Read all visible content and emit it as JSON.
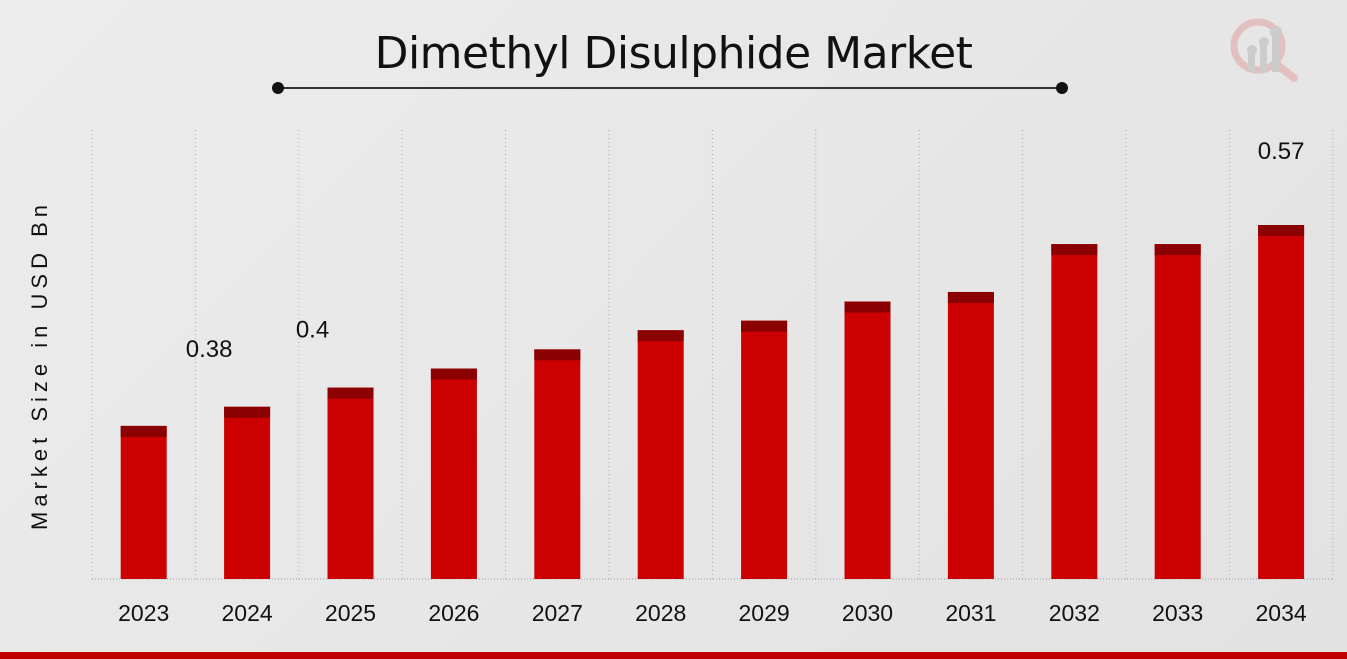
{
  "chart_data": {
    "type": "bar",
    "title": "Dimethyl Disulphide Market",
    "xlabel": "",
    "ylabel": "Market Size in USD Bn",
    "categories": [
      "2023",
      "2024",
      "2025",
      "2026",
      "2027",
      "2028",
      "2029",
      "2030",
      "2031",
      "2032",
      "2033",
      "2034"
    ],
    "values": [
      0.36,
      0.38,
      0.4,
      0.42,
      0.44,
      0.46,
      0.47,
      0.49,
      0.5,
      0.55,
      0.55,
      0.57
    ],
    "data_labels": {
      "1": "0.38",
      "2": "0.4",
      "11": "0.57"
    },
    "ylim": [
      0.2,
      0.6
    ],
    "grid": "vertical-dotted",
    "bar_color": "#cc0000",
    "bar_cap_color": "#8b0000"
  }
}
